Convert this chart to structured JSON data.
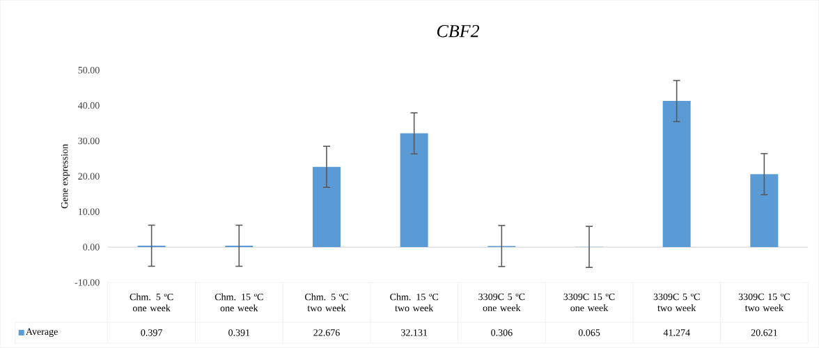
{
  "chart_data": {
    "type": "bar",
    "title": "CBF2",
    "ylabel": "Gene expression",
    "categories": [
      "Chm. 5 ºC one week",
      "Chm. 15 ºC one week",
      "Chm. 5 ºC two week",
      "Chm. 15 ºC two week",
      "3309C 5 ºC one week",
      "3309C 15 ºC one week",
      "3309C 5 ºC two week",
      "3309C 15 ºC two week"
    ],
    "series": [
      {
        "name": "Average",
        "color": "#5b9bd5",
        "values": [
          0.397,
          0.391,
          22.676,
          32.131,
          0.306,
          0.065,
          41.274,
          20.621
        ],
        "errors": [
          5.8,
          5.8,
          5.8,
          5.8,
          5.8,
          5.8,
          5.8,
          5.8
        ],
        "value_labels": [
          "0.397",
          "0.391",
          "22.676",
          "32.131",
          "0.306",
          "0.065",
          "41.274",
          "20.621"
        ]
      }
    ],
    "ylim": [
      -10,
      50
    ],
    "yticks": [
      {
        "value": -10,
        "label": "-10.00"
      },
      {
        "value": 0,
        "label": "0.00"
      },
      {
        "value": 10,
        "label": "10.00"
      },
      {
        "value": 20,
        "label": "20.00"
      },
      {
        "value": 30,
        "label": "30.00"
      },
      {
        "value": 40,
        "label": "40.00"
      },
      {
        "value": 50,
        "label": "50.00"
      }
    ],
    "ref_lines": [
      {
        "axis": "y",
        "value": 0,
        "color": "#d9d9d9"
      }
    ],
    "legend": "bottom"
  }
}
